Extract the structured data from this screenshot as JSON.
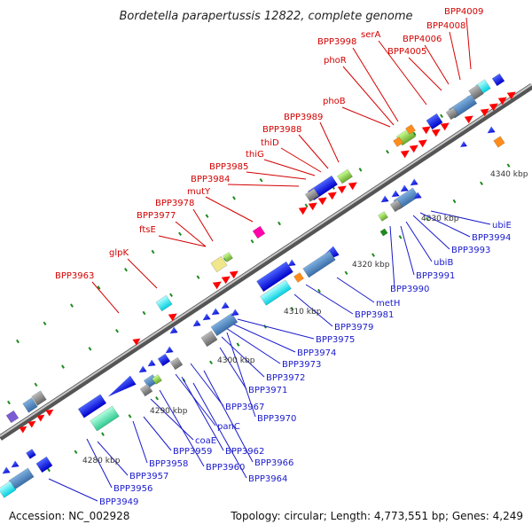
{
  "header": {
    "title": "Bordetella parapertussis 12822, complete genome"
  },
  "footer": {
    "accession": "Accession: NC_002928",
    "topology": "Topology: circular; Length: 4,773,551 bp; Genes: 4,249"
  },
  "colors": {
    "top_label": "#d40000",
    "bottom_label": "#1a1acc",
    "backbone": "#808080"
  },
  "axis": {
    "scale_labels": [
      {
        "text": "4280 kbp"
      },
      {
        "text": "4290 kbp"
      },
      {
        "text": "4300 kbp"
      },
      {
        "text": "4310 kbp"
      },
      {
        "text": "4320 kbp"
      },
      {
        "text": "4330 kbp"
      },
      {
        "text": "4340 kbp"
      }
    ]
  },
  "top_labels": [
    {
      "text": "BPP4009"
    },
    {
      "text": "BPP4008"
    },
    {
      "text": "serA"
    },
    {
      "text": "BPP4006"
    },
    {
      "text": "BPP3998"
    },
    {
      "text": "BPP4005"
    },
    {
      "text": "phoR"
    },
    {
      "text": "phoB"
    },
    {
      "text": "BPP3989"
    },
    {
      "text": "BPP3988"
    },
    {
      "text": "thiD"
    },
    {
      "text": "thiG"
    },
    {
      "text": "BPP3985"
    },
    {
      "text": "BPP3984"
    },
    {
      "text": "mutY"
    },
    {
      "text": "BPP3978"
    },
    {
      "text": "BPP3977"
    },
    {
      "text": "ftsE"
    },
    {
      "text": "glpK"
    },
    {
      "text": "BPP3963"
    }
  ],
  "bottom_labels": [
    {
      "text": "ubiE"
    },
    {
      "text": "BPP3994"
    },
    {
      "text": "BPP3993"
    },
    {
      "text": "ubiB"
    },
    {
      "text": "BPP3991"
    },
    {
      "text": "BPP3990"
    },
    {
      "text": "metH"
    },
    {
      "text": "BPP3981"
    },
    {
      "text": "BPP3979"
    },
    {
      "text": "BPP3975"
    },
    {
      "text": "BPP3974"
    },
    {
      "text": "BPP3973"
    },
    {
      "text": "BPP3972"
    },
    {
      "text": "BPP3971"
    },
    {
      "text": "BPP3970"
    },
    {
      "text": "BPP3967"
    },
    {
      "text": "panC"
    },
    {
      "text": "coaE"
    },
    {
      "text": "BPP3962"
    },
    {
      "text": "BPP3966"
    },
    {
      "text": "BPP3959"
    },
    {
      "text": "BPP3960"
    },
    {
      "text": "BPP3964"
    },
    {
      "text": "BPP3958"
    },
    {
      "text": "BPP3957"
    },
    {
      "text": "BPP3956"
    },
    {
      "text": "BPP3949"
    }
  ]
}
